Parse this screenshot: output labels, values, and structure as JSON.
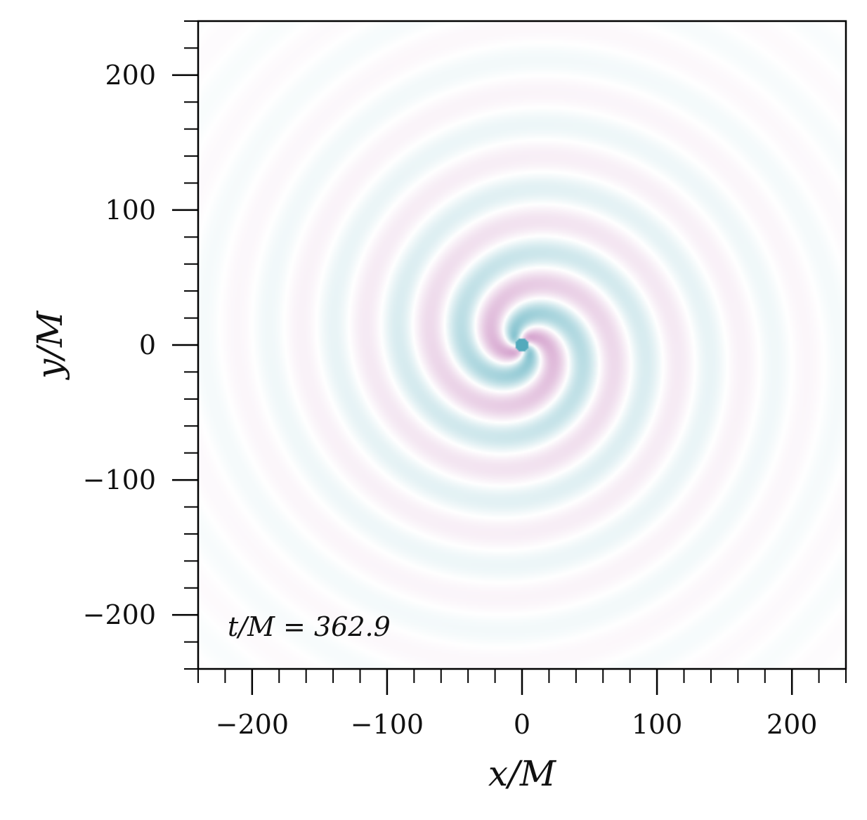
{
  "chart_data": {
    "type": "heatmap",
    "title": "",
    "xlabel": "x/M",
    "ylabel": "y/M",
    "xlim": [
      -240,
      240
    ],
    "ylim": [
      -240,
      240
    ],
    "x_ticks": [
      -200,
      -100,
      0,
      100,
      200
    ],
    "y_ticks": [
      -200,
      -100,
      0,
      100,
      200
    ],
    "x_tick_labels": [
      "−200",
      "−100",
      "0",
      "100",
      "200"
    ],
    "y_tick_labels": [
      "−200",
      "−100",
      "0",
      "100",
      "200"
    ],
    "minor_tick_step": 20,
    "annotation": "t/M = 362.9",
    "field": {
      "pattern": "two-armed spiral",
      "center": [
        0,
        0
      ],
      "colors": {
        "positive": "#4aa6b8",
        "negative": "#c27ab8",
        "background": "#ffffff"
      }
    },
    "grid": false
  }
}
